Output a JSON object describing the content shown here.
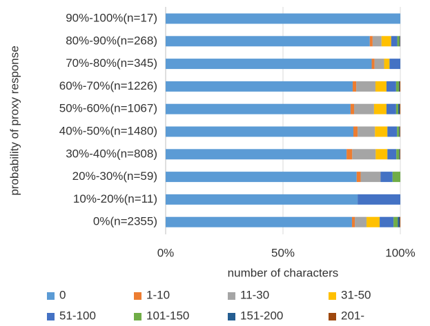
{
  "chart_data": {
    "type": "bar",
    "orientation": "horizontal",
    "stacked": true,
    "x_label": "number of characters",
    "y_label": "probability of proxy response",
    "categories": [
      "90%-100%(n=17)",
      "80%-90%(n=268)",
      "70%-80%(n=345)",
      "60%-70%(n=1226)",
      "50%-60%(n=1067)",
      "40%-50%(n=1480)",
      "30%-40%(n=808)",
      "20%-30%(n=59)",
      "10%-20%(n=11)",
      "0%(n=2355)"
    ],
    "series": [
      {
        "name": "0",
        "color": "#5b9bd5",
        "values": [
          100,
          87,
          87.8,
          79.7,
          78.8,
          80,
          77.1,
          81.4,
          81.8,
          79.4
        ]
      },
      {
        "name": "1-10",
        "color": "#ed7d31",
        "values": [
          0,
          1.2,
          1.2,
          1.5,
          1.5,
          1.8,
          2.4,
          1.7,
          0,
          1.2
        ]
      },
      {
        "name": "11-30",
        "color": "#a5a5a5",
        "values": [
          0,
          3.8,
          4.1,
          8.2,
          8.5,
          7.4,
          10,
          8.5,
          0,
          5
        ]
      },
      {
        "name": "31-50",
        "color": "#ffc000",
        "values": [
          0,
          4.1,
          2.3,
          4.7,
          5.3,
          5.3,
          5,
          0,
          0,
          5.6
        ]
      },
      {
        "name": "51-100",
        "color": "#4472c4",
        "values": [
          0,
          2.6,
          4.6,
          4.1,
          4.1,
          4.1,
          3.8,
          5.1,
          18.2,
          5.9
        ]
      },
      {
        "name": "101-150",
        "color": "#70ad47",
        "values": [
          0,
          0.9,
          0,
          1.2,
          0.9,
          0.9,
          1.2,
          3.3,
          0,
          1.8
        ]
      },
      {
        "name": "151-200",
        "color": "#255e91",
        "values": [
          0,
          0.3,
          0,
          0.3,
          0.6,
          0.3,
          0.3,
          0,
          0,
          0.8
        ]
      },
      {
        "name": "201-",
        "color": "#9e480e",
        "values": [
          0,
          0.1,
          0,
          0.3,
          0.3,
          0.2,
          0.2,
          0,
          0,
          0.3
        ]
      }
    ],
    "xlim": [
      0,
      100
    ],
    "xticks": [
      {
        "value": 0,
        "label": "0%"
      },
      {
        "value": 50,
        "label": "50%"
      },
      {
        "value": 100,
        "label": "100%"
      }
    ],
    "grid": true,
    "legend": "bottom"
  }
}
